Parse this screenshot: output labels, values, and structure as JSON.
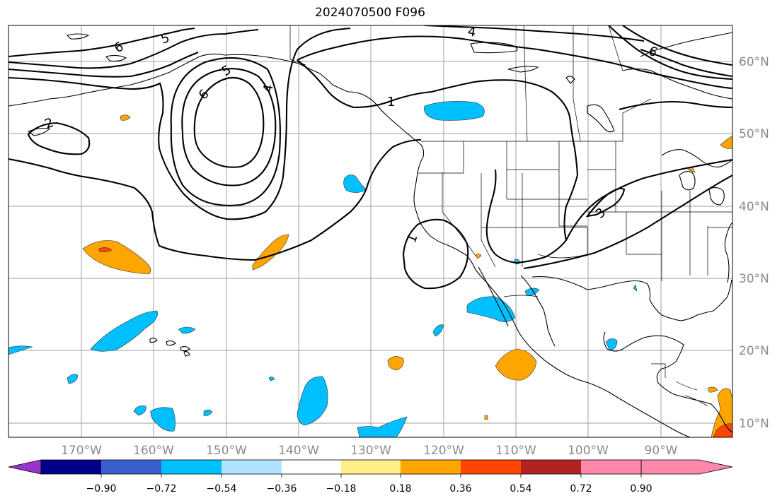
{
  "title": "2024070500 F096",
  "lon_ticks": [
    "170°W",
    "160°W",
    "150°W",
    "140°W",
    "130°W",
    "120°W",
    "110°W",
    "100°W",
    "90°W"
  ],
  "lat_ticks": [
    "10°N",
    "20°N",
    "30°N",
    "40°N",
    "50°N",
    "60°N"
  ],
  "contour_labels": [
    "6",
    "5",
    "4",
    "5",
    "6",
    "4",
    "1",
    "6",
    "2",
    "1",
    "3"
  ],
  "colorbar": {
    "ticks": [
      "−0.90",
      "−0.72",
      "−0.54",
      "−0.36",
      "−0.18",
      "0.18",
      "0.36",
      "0.54",
      "0.72",
      "0.90"
    ],
    "colors": [
      "#9933cc",
      "#00008b",
      "#3a5fcd",
      "#00bfff",
      "#b0e2ff",
      "#ffffff",
      "#ffee88",
      "#ffa500",
      "#ff4500",
      "#b22222",
      "#ff88aa"
    ]
  }
}
